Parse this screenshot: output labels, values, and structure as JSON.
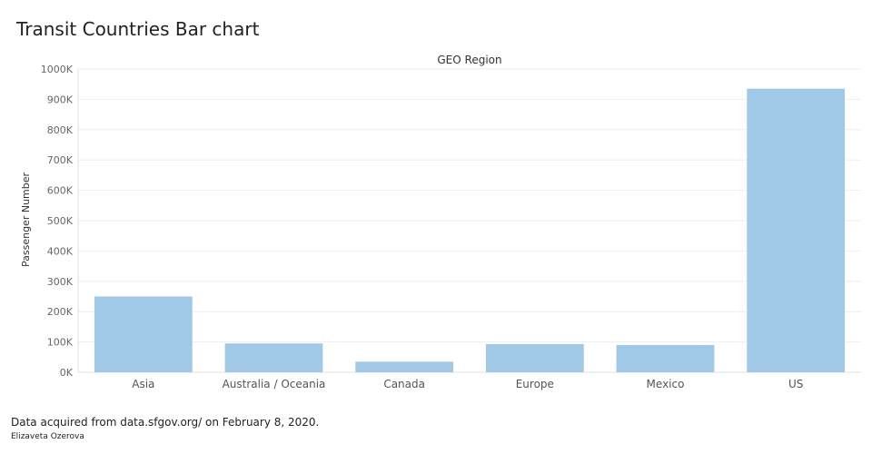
{
  "page": {
    "title": "Transit Countries Bar chart",
    "footer_note": "Data acquired from data.sfgov.org/ on February 8, 2020.",
    "author": "Elizaveta Ozerova"
  },
  "chart_data": {
    "type": "bar",
    "title": "GEO Region",
    "xlabel": "",
    "ylabel": "Passenger Number",
    "categories": [
      "Asia",
      "Australia / Oceania",
      "Canada",
      "Europe",
      "Mexico",
      "US"
    ],
    "values": [
      250000,
      95000,
      35000,
      93000,
      90000,
      935000
    ],
    "ylim": [
      0,
      1000000
    ],
    "yticks": [
      0,
      100000,
      200000,
      300000,
      400000,
      500000,
      600000,
      700000,
      800000,
      900000,
      1000000
    ],
    "ytick_labels": [
      "0K",
      "100K",
      "200K",
      "300K",
      "400K",
      "500K",
      "600K",
      "700K",
      "800K",
      "900K",
      "1000K"
    ],
    "grid": true,
    "bar_color": "#9fc9e7",
    "grid_color": "#eeeeee"
  }
}
